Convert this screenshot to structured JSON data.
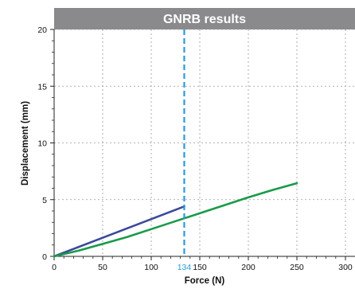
{
  "chart_data": {
    "type": "line",
    "title": "GNRB results",
    "xlabel": "Force (N)",
    "ylabel": "Displacement (mm)",
    "xlim": [
      0,
      300
    ],
    "ylim": [
      0,
      20
    ],
    "x_ticks": [
      0,
      50,
      100,
      150,
      200,
      250,
      300
    ],
    "y_ticks": [
      0,
      5,
      10,
      15,
      20
    ],
    "grid": true,
    "series": [
      {
        "color": "#3b4a9a",
        "x": [
          0,
          134
        ],
        "y": [
          0,
          4.4
        ]
      },
      {
        "color": "#1a9a4a",
        "x": [
          0,
          25,
          50,
          75,
          100,
          125,
          150,
          175,
          200,
          225,
          250
        ],
        "y": [
          0,
          0.5,
          1.1,
          1.7,
          2.4,
          3.1,
          3.8,
          4.5,
          5.2,
          5.85,
          6.45
        ]
      }
    ],
    "annotations": [
      {
        "type": "vline",
        "x": 134,
        "label": "134",
        "color": "#2a9bd8"
      }
    ]
  }
}
